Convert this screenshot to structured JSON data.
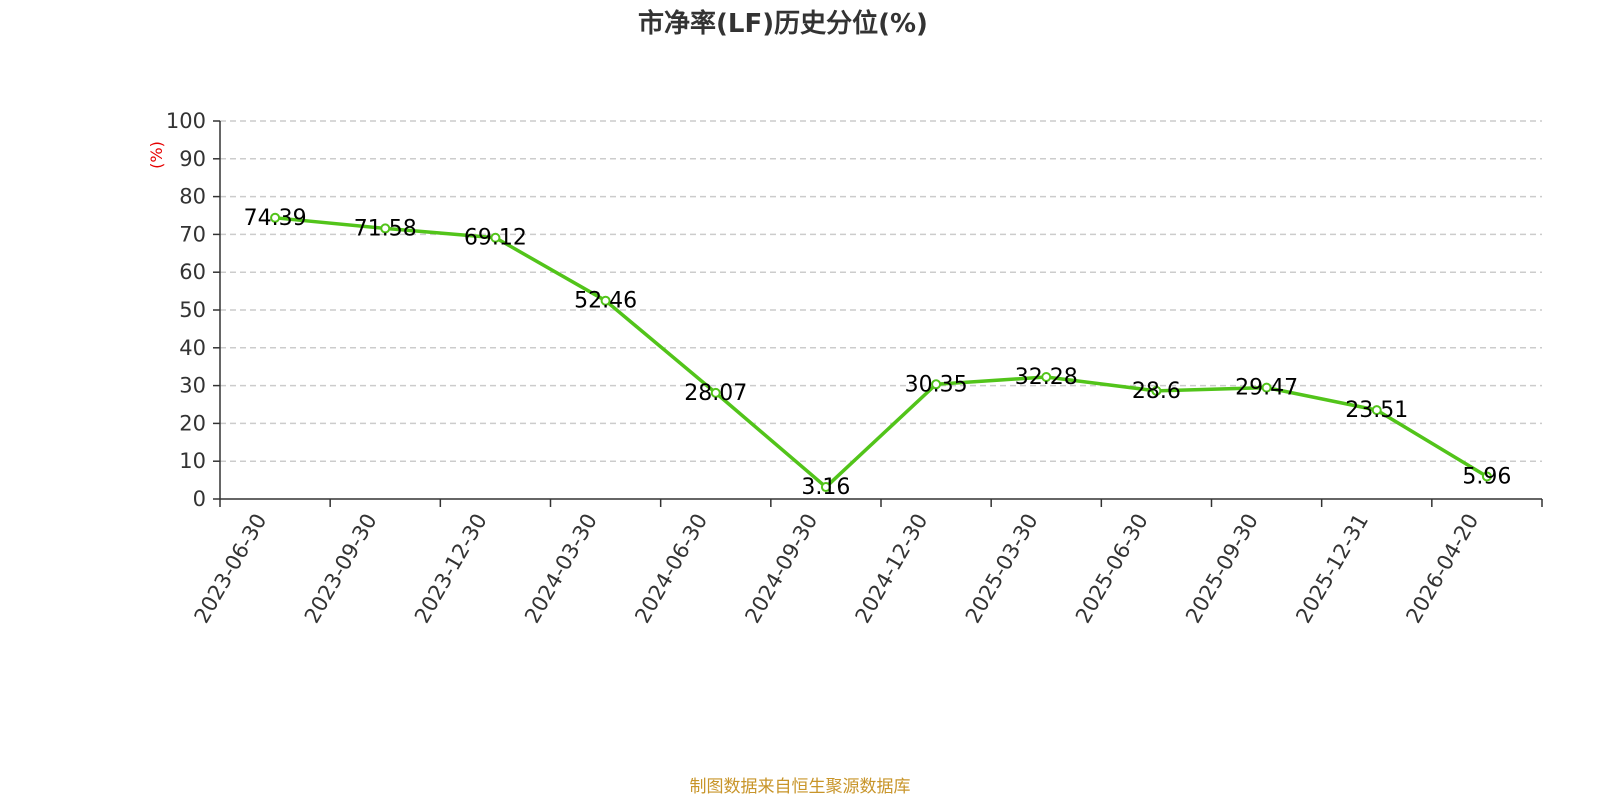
{
  "chart_data": {
    "type": "line",
    "title": "市净率(LF)历史分位(%)",
    "ylabel": "(%)",
    "xlabel": "",
    "ylim": [
      0,
      100
    ],
    "yticks": [
      0,
      10,
      20,
      30,
      40,
      50,
      60,
      70,
      80,
      90,
      100
    ],
    "categories": [
      "2023-06-30",
      "2023-09-30",
      "2023-12-30",
      "2024-03-30",
      "2024-06-30",
      "2024-09-30",
      "2024-12-30",
      "2025-03-30",
      "2025-06-30",
      "2025-09-30",
      "2025-12-31",
      "2026-04-20"
    ],
    "series": [
      {
        "values": [
          74.39,
          71.58,
          69.12,
          52.46,
          28.07,
          3.16,
          30.35,
          32.28,
          28.6,
          29.47,
          23.51,
          5.96
        ],
        "data_labels": [
          "74.39",
          "71.58",
          "69.12",
          "52.46",
          "28.07",
          "3.16",
          "30.35",
          "32.28",
          "28.6",
          "29.47",
          "23.51",
          "5.96"
        ],
        "color": "#52c41a"
      }
    ],
    "grid": true,
    "legend": "none"
  },
  "footer": {
    "source_text": "制图数据来自恒生聚源数据库"
  },
  "colors": {
    "line": "#52c41a",
    "ylabel": "#e60000",
    "footer": "#c8952a",
    "grid": "#cccccc",
    "axis": "#333333",
    "title": "#333333"
  }
}
